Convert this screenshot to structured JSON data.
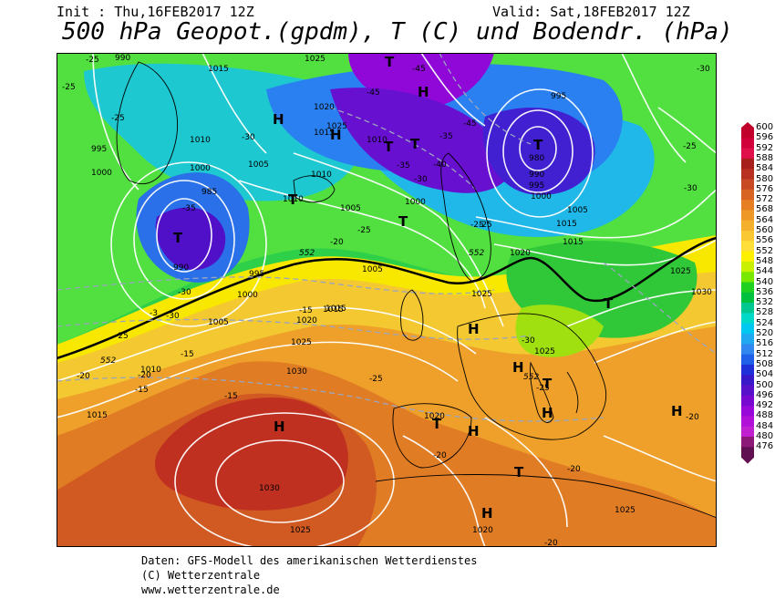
{
  "header": {
    "init": "Init : Thu,16FEB2017 12Z",
    "valid": "Valid: Sat,18FEB2017 12Z",
    "title": "500 hPa Geopot.(gpdm), T (C) und Bodendr. (hPa)"
  },
  "legend": {
    "values": [
      "600",
      "596",
      "592",
      "588",
      "584",
      "580",
      "576",
      "572",
      "568",
      "564",
      "560",
      "556",
      "552",
      "548",
      "544",
      "540",
      "536",
      "532",
      "528",
      "524",
      "520",
      "516",
      "512",
      "508",
      "504",
      "500",
      "496",
      "492",
      "488",
      "484",
      "480",
      "476"
    ],
    "colors": [
      "#c0002a",
      "#d2003a",
      "#e0104a",
      "#a8201c",
      "#b83020",
      "#c84a22",
      "#d86424",
      "#e67e24",
      "#ee9828",
      "#f4b02c",
      "#fac832",
      "#ffde3a",
      "#fff000",
      "#c8f000",
      "#78e800",
      "#20d020",
      "#00c040",
      "#00c890",
      "#00d8c8",
      "#00c8f0",
      "#20a8f0",
      "#3088f0",
      "#2060e8",
      "#2030d8",
      "#3818c8",
      "#5810c8",
      "#7808d0",
      "#9808d8",
      "#b010d8",
      "#c020d0",
      "#8c1878",
      "#601050"
    ]
  },
  "map": {
    "high_markers": [
      {
        "label": "H"
      },
      {
        "label": "H"
      },
      {
        "label": "H"
      },
      {
        "label": "H"
      },
      {
        "label": "H"
      },
      {
        "label": "H"
      },
      {
        "label": "H"
      },
      {
        "label": "H"
      },
      {
        "label": "H"
      },
      {
        "label": "H"
      }
    ],
    "low_markers": [
      {
        "label": "T"
      },
      {
        "label": "T"
      },
      {
        "label": "T"
      },
      {
        "label": "T"
      },
      {
        "label": "T"
      },
      {
        "label": "T"
      },
      {
        "label": "T"
      },
      {
        "label": "T"
      },
      {
        "label": "T"
      },
      {
        "label": "T"
      },
      {
        "label": "T"
      }
    ],
    "pressure_labels": [
      "990",
      "1015",
      "1010",
      "1015",
      "1020",
      "1025",
      "1000",
      "1005",
      "995",
      "1000",
      "1025",
      "995",
      "1010",
      "1000",
      "990",
      "1010",
      "1015",
      "1020",
      "1005",
      "1000",
      "1005",
      "1015",
      "1025",
      "1030",
      "1030",
      "1025",
      "1020",
      "1020",
      "1025",
      "1025",
      "1030",
      "1015",
      "1015",
      "1010",
      "985",
      "990",
      "980",
      "1005",
      "1000",
      "995",
      "1025",
      "1020",
      "1025",
      "1010",
      "995",
      "1015",
      "1005"
    ],
    "temp_labels": [
      "-25",
      "-25",
      "-25",
      "-35",
      "-30",
      "-45",
      "-45",
      "-45",
      "-40",
      "-35",
      "-35",
      "-30",
      "-25",
      "-20",
      "-25",
      "-30",
      "-30",
      "-20",
      "-25",
      "-15",
      "-15",
      "-15",
      "-15",
      "-20",
      "-25",
      "-30",
      "-25",
      "-20",
      "-20",
      "-25",
      "-30",
      "-25",
      "-20",
      "-20",
      "-30",
      "-3"
    ],
    "geopot_labels": [
      "552",
      "552",
      "552",
      "552"
    ]
  },
  "footer": {
    "line1": "Daten: GFS-Modell des amerikanischen Wetterdienstes",
    "line2": "(C) Wetterzentrale",
    "line3": "www.wetterzentrale.de"
  }
}
